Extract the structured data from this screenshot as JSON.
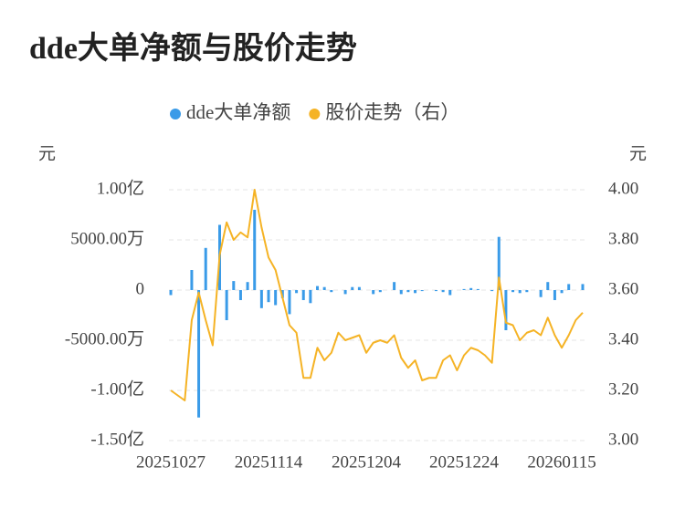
{
  "chart_data": {
    "type": "bar-line",
    "title": "dde大单净额与股价走势",
    "y_label": "元",
    "y2_label": "元",
    "categories": [
      "20251027",
      null,
      null,
      null,
      null,
      null,
      null,
      null,
      null,
      null,
      null,
      null,
      null,
      null,
      "20251114",
      null,
      null,
      null,
      null,
      null,
      null,
      null,
      null,
      null,
      null,
      null,
      null,
      null,
      "20251204",
      null,
      null,
      null,
      null,
      null,
      null,
      null,
      null,
      null,
      null,
      null,
      null,
      null,
      "20251224",
      null,
      null,
      null,
      null,
      null,
      null,
      null,
      null,
      null,
      null,
      null,
      null,
      null,
      "20260115",
      null,
      null,
      null
    ],
    "series": [
      {
        "name": "dde大单净额",
        "type": "bar",
        "color": "#3a9be8",
        "values": [
          -500,
          0,
          0,
          2000,
          -12700,
          4200,
          0,
          6500,
          -3000,
          900,
          -1000,
          800,
          8000,
          -1800,
          -1200,
          -1500,
          -800,
          -2400,
          -300,
          -1000,
          -1300,
          400,
          300,
          -200,
          0,
          -400,
          300,
          300,
          0,
          -400,
          -200,
          0,
          800,
          -400,
          -200,
          -300,
          -100,
          0,
          -100,
          -200,
          -500,
          0,
          100,
          200,
          100,
          0,
          -100,
          5300,
          -4000,
          -200,
          -300,
          -200,
          0,
          -700,
          800,
          -1000,
          -300,
          600,
          0,
          600
        ]
      },
      {
        "name": "股价走势（右）",
        "type": "line",
        "axis": "y2",
        "color": "#f5b325",
        "values": [
          3.2,
          3.18,
          3.16,
          3.48,
          3.59,
          3.48,
          3.38,
          3.74,
          3.87,
          3.8,
          3.83,
          3.81,
          4.0,
          3.85,
          3.73,
          3.68,
          3.57,
          3.46,
          3.43,
          3.25,
          3.25,
          3.37,
          3.32,
          3.35,
          3.43,
          3.4,
          3.41,
          3.42,
          3.35,
          3.39,
          3.4,
          3.39,
          3.42,
          3.33,
          3.29,
          3.32,
          3.24,
          3.25,
          3.25,
          3.32,
          3.34,
          3.28,
          3.34,
          3.37,
          3.36,
          3.34,
          3.31,
          3.65,
          3.47,
          3.46,
          3.4,
          3.43,
          3.44,
          3.42,
          3.49,
          3.42,
          3.37,
          3.42,
          3.48,
          3.51
        ]
      }
    ],
    "ylim": [
      -15000,
      10000
    ],
    "yticks": [
      {
        "value": 10000,
        "label": "1.00亿"
      },
      {
        "value": 5000,
        "label": "5000.00万"
      },
      0,
      {
        "value": -5000,
        "label": "-5000.00万"
      },
      {
        "value": -10000,
        "label": "-1.00亿"
      },
      {
        "value": -15000,
        "label": "-1.50亿"
      }
    ],
    "y2lim": [
      3.0,
      4.0
    ],
    "y2ticks": [
      {
        "value": 4.0,
        "label": "4.00"
      },
      {
        "value": 3.8,
        "label": "3.80"
      },
      {
        "value": 3.6,
        "label": "3.60"
      },
      {
        "value": 3.4,
        "label": "3.40"
      },
      {
        "value": 3.2,
        "label": "3.20"
      },
      {
        "value": 3.0,
        "label": "3.00"
      }
    ],
    "grid": true
  }
}
